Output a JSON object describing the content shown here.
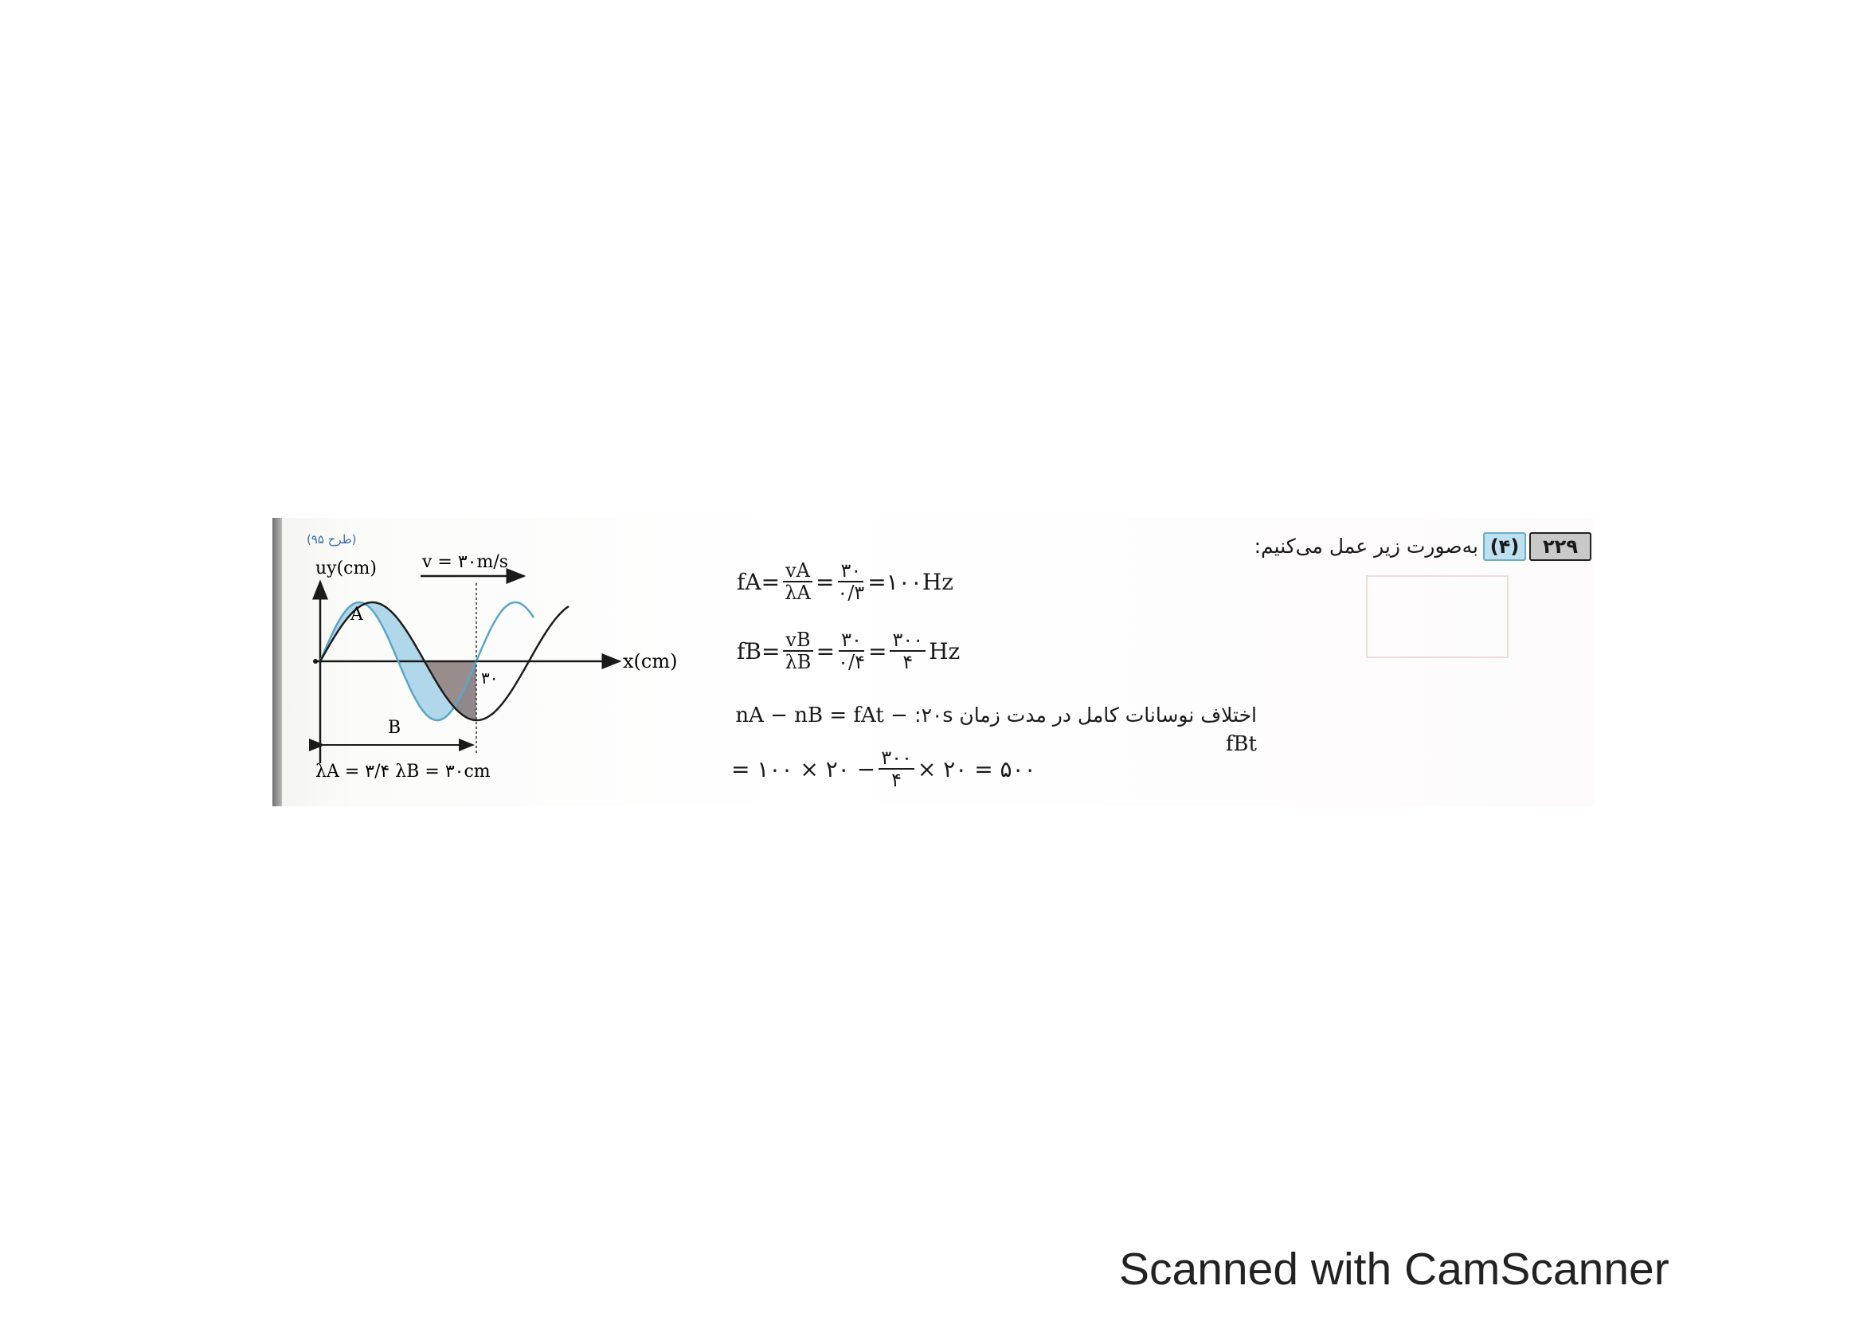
{
  "question": {
    "number": "۲۲۹",
    "answer": "(۴)",
    "intro": "به‌صورت زیر عمل می‌کنیم:"
  },
  "figure": {
    "source_note": "(طرح ۹۵)",
    "y_axis_label": "uy(cm)",
    "x_axis_label": "x(cm)",
    "velocity_label": "v = ۳۰m/s",
    "wave_a_label": "A",
    "wave_b_label": "B",
    "tick_label": "۳۰",
    "wavelength_relation": "λA = ۳/۴ λB = ۳۰cm",
    "colors": {
      "wave_a": "#5aa6c8",
      "wave_b": "#1e1e1e",
      "fill_a": "#a9d3e8",
      "fill_b": "#8d7f80"
    }
  },
  "equations": {
    "fa": {
      "lhs": "fA",
      "num1": "vA",
      "den1": "λA",
      "num2": "۳۰",
      "den2": "۰/۳",
      "result": "۱۰۰Hz"
    },
    "fb": {
      "lhs": "fB",
      "num1": "vB",
      "den1": "λB",
      "num2": "۳۰",
      "den2": "۰/۴",
      "num3": "۳۰۰",
      "den3": "۴",
      "unit": "Hz"
    },
    "difference_text": "اختلاف نوسانات کامل در مدت زمان ۲۰s:",
    "difference_formula": "nA − nB = fAt − fBt",
    "final": {
      "part1": "= ۱۰۰ × ۲۰ −",
      "num": "۳۰۰",
      "den": "۴",
      "part2": "× ۲۰ = ۵۰۰"
    }
  },
  "watermark": "Scanned with CamScanner"
}
